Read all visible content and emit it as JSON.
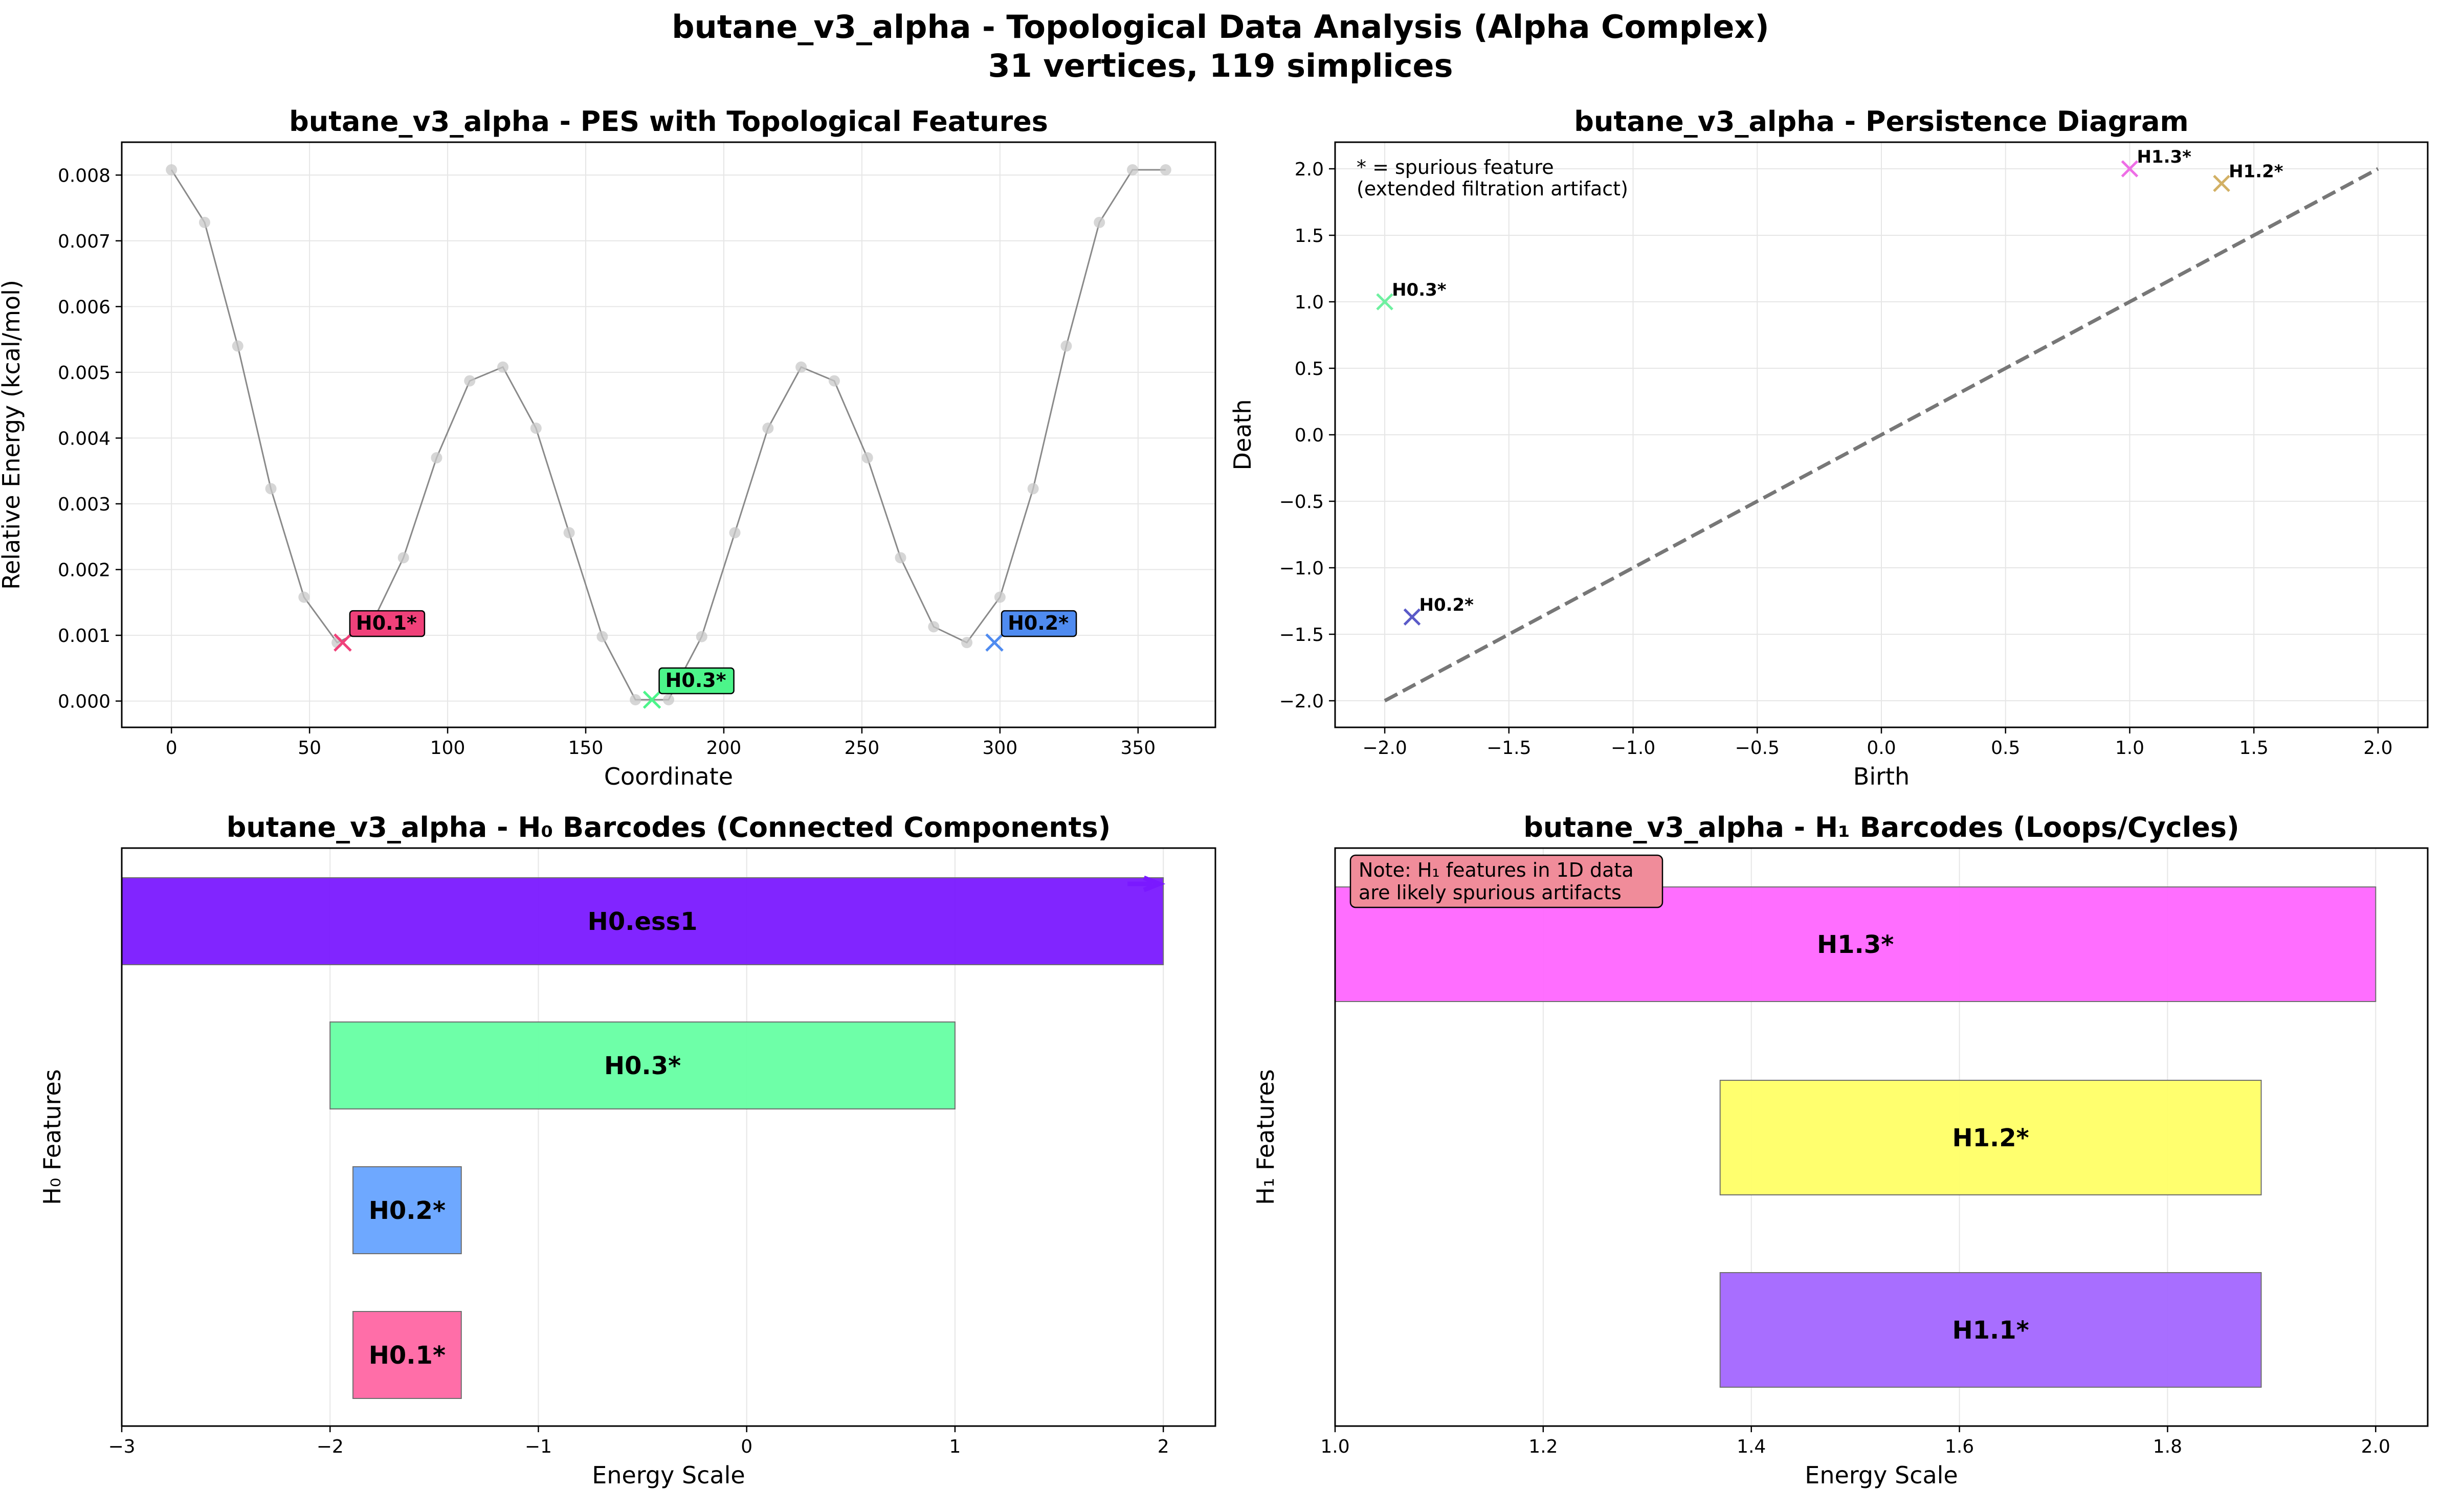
{
  "figure": {
    "title_line1": "butane_v3_alpha - Topological Data Analysis (Alpha Complex)",
    "title_line2": "31 vertices, 119 simplices"
  },
  "chart_data": [
    {
      "type": "line",
      "title": "butane_v3_alpha - PES with Topological Features",
      "xlabel": "Coordinate",
      "ylabel": "Relative Energy (kcal/mol)",
      "xlim": [
        -18,
        378
      ],
      "ylim": [
        -0.0004,
        0.0085
      ],
      "xticks": [
        0,
        50,
        100,
        150,
        200,
        250,
        300,
        350
      ],
      "yticks": [
        0.0,
        0.001,
        0.002,
        0.003,
        0.004,
        0.005,
        0.006,
        0.007,
        0.008
      ],
      "ytick_labels": [
        "0.000",
        "0.001",
        "0.002",
        "0.003",
        "0.004",
        "0.005",
        "0.006",
        "0.007",
        "0.008"
      ],
      "grid": true,
      "line_color": "#8a8a8a",
      "x": [
        0,
        12,
        24,
        36,
        48,
        60,
        72,
        84,
        96,
        108,
        120,
        132,
        144,
        156,
        168,
        180,
        192,
        204,
        216,
        228,
        240,
        252,
        264,
        276,
        288,
        300,
        312,
        324,
        336,
        348,
        360
      ],
      "y": [
        0.00808,
        0.00728,
        0.0054,
        0.00323,
        0.00158,
        0.00089,
        0.00113,
        0.00218,
        0.0037,
        0.00487,
        0.00508,
        0.00415,
        0.00256,
        0.00098,
        2e-05,
        2e-05,
        0.00098,
        0.00256,
        0.00415,
        0.00508,
        0.00487,
        0.0037,
        0.00218,
        0.00113,
        0.00089,
        0.00158,
        0.00323,
        0.0054,
        0.00728,
        0.00808,
        0.00808
      ],
      "features": [
        {
          "label": "H0.1*",
          "x": 62,
          "y": 0.00089,
          "color": "#f0417a"
        },
        {
          "label": "H0.3*",
          "x": 174,
          "y": 2e-05,
          "color": "#4cf58a"
        },
        {
          "label": "H0.2*",
          "x": 298,
          "y": 0.00089,
          "color": "#4f8bf0"
        }
      ]
    },
    {
      "type": "scatter",
      "title": "butane_v3_alpha - Persistence Diagram",
      "xlabel": "Birth",
      "ylabel": "Death",
      "xlim": [
        -2.2,
        2.2
      ],
      "ylim": [
        -2.2,
        2.2
      ],
      "xticks": [
        -2.0,
        -1.5,
        -1.0,
        -0.5,
        0.0,
        0.5,
        1.0,
        1.5,
        2.0
      ],
      "yticks": [
        -2.0,
        -1.5,
        -1.0,
        -0.5,
        0.0,
        0.5,
        1.0,
        1.5,
        2.0
      ],
      "xtick_labels": [
        "−2.0",
        "−1.5",
        "−1.0",
        "−0.5",
        "0.0",
        "0.5",
        "1.0",
        "1.5",
        "2.0"
      ],
      "ytick_labels": [
        "−2.0",
        "−1.5",
        "−1.0",
        "−0.5",
        "0.0",
        "0.5",
        "1.0",
        "1.5",
        "2.0"
      ],
      "grid": true,
      "diagonal": [
        -2.0,
        2.0
      ],
      "note_line1": "* = spurious feature",
      "note_line2": "(extended filtration artifact)",
      "points": [
        {
          "label": "H0.3*",
          "x": -2.0,
          "y": 1.0,
          "color": "#6ef0a0"
        },
        {
          "label": "H0.2*",
          "x": -1.89,
          "y": -1.37,
          "color": "#5a5ac8"
        },
        {
          "label": "H1.3*",
          "x": 1.0,
          "y": 2.0,
          "color": "#ee6ee6"
        },
        {
          "label": "H1.2*",
          "x": 1.37,
          "y": 1.89,
          "color": "#d2b064"
        }
      ]
    },
    {
      "type": "bar",
      "orientation": "horizontal",
      "title": "butane_v3_alpha - H₀ Barcodes (Connected Components)",
      "xlabel": "Energy Scale",
      "ylabel": "H₀ Features",
      "xlim": [
        -3,
        2.25
      ],
      "xticks": [
        -3,
        -2,
        -1,
        0,
        1,
        2
      ],
      "xtick_labels": [
        "−3",
        "−2",
        "−1",
        "0",
        "1",
        "2"
      ],
      "grid": true,
      "bars": [
        {
          "label": "H0.ess1",
          "start": -3.0,
          "end": 2.0,
          "color": "#7a19ff",
          "arrow": true
        },
        {
          "label": "H0.3*",
          "start": -2.0,
          "end": 1.0,
          "color": "#66ffa3"
        },
        {
          "label": "H0.2*",
          "start": -1.89,
          "end": -1.37,
          "color": "#66a3ff"
        },
        {
          "label": "H0.1*",
          "start": -1.89,
          "end": -1.37,
          "color": "#ff66a3"
        }
      ]
    },
    {
      "type": "bar",
      "orientation": "horizontal",
      "title": "butane_v3_alpha - H₁ Barcodes (Loops/Cycles)",
      "xlabel": "Energy Scale",
      "ylabel": "H₁ Features",
      "xlim": [
        1.0,
        2.05
      ],
      "xticks": [
        1.0,
        1.2,
        1.4,
        1.6,
        1.8,
        2.0
      ],
      "xtick_labels": [
        "1.0",
        "1.2",
        "1.4",
        "1.6",
        "1.8",
        "2.0"
      ],
      "grid": true,
      "note_line1": "Note: H₁ features in 1D data",
      "note_line2": "are likely spurious artifacts",
      "bars": [
        {
          "label": "H1.3*",
          "start": 1.0,
          "end": 2.0,
          "color": "#ff66ff"
        },
        {
          "label": "H1.2*",
          "start": 1.37,
          "end": 1.89,
          "color": "#ffff66"
        },
        {
          "label": "H1.1*",
          "start": 1.37,
          "end": 1.89,
          "color": "#a366ff"
        }
      ]
    }
  ]
}
